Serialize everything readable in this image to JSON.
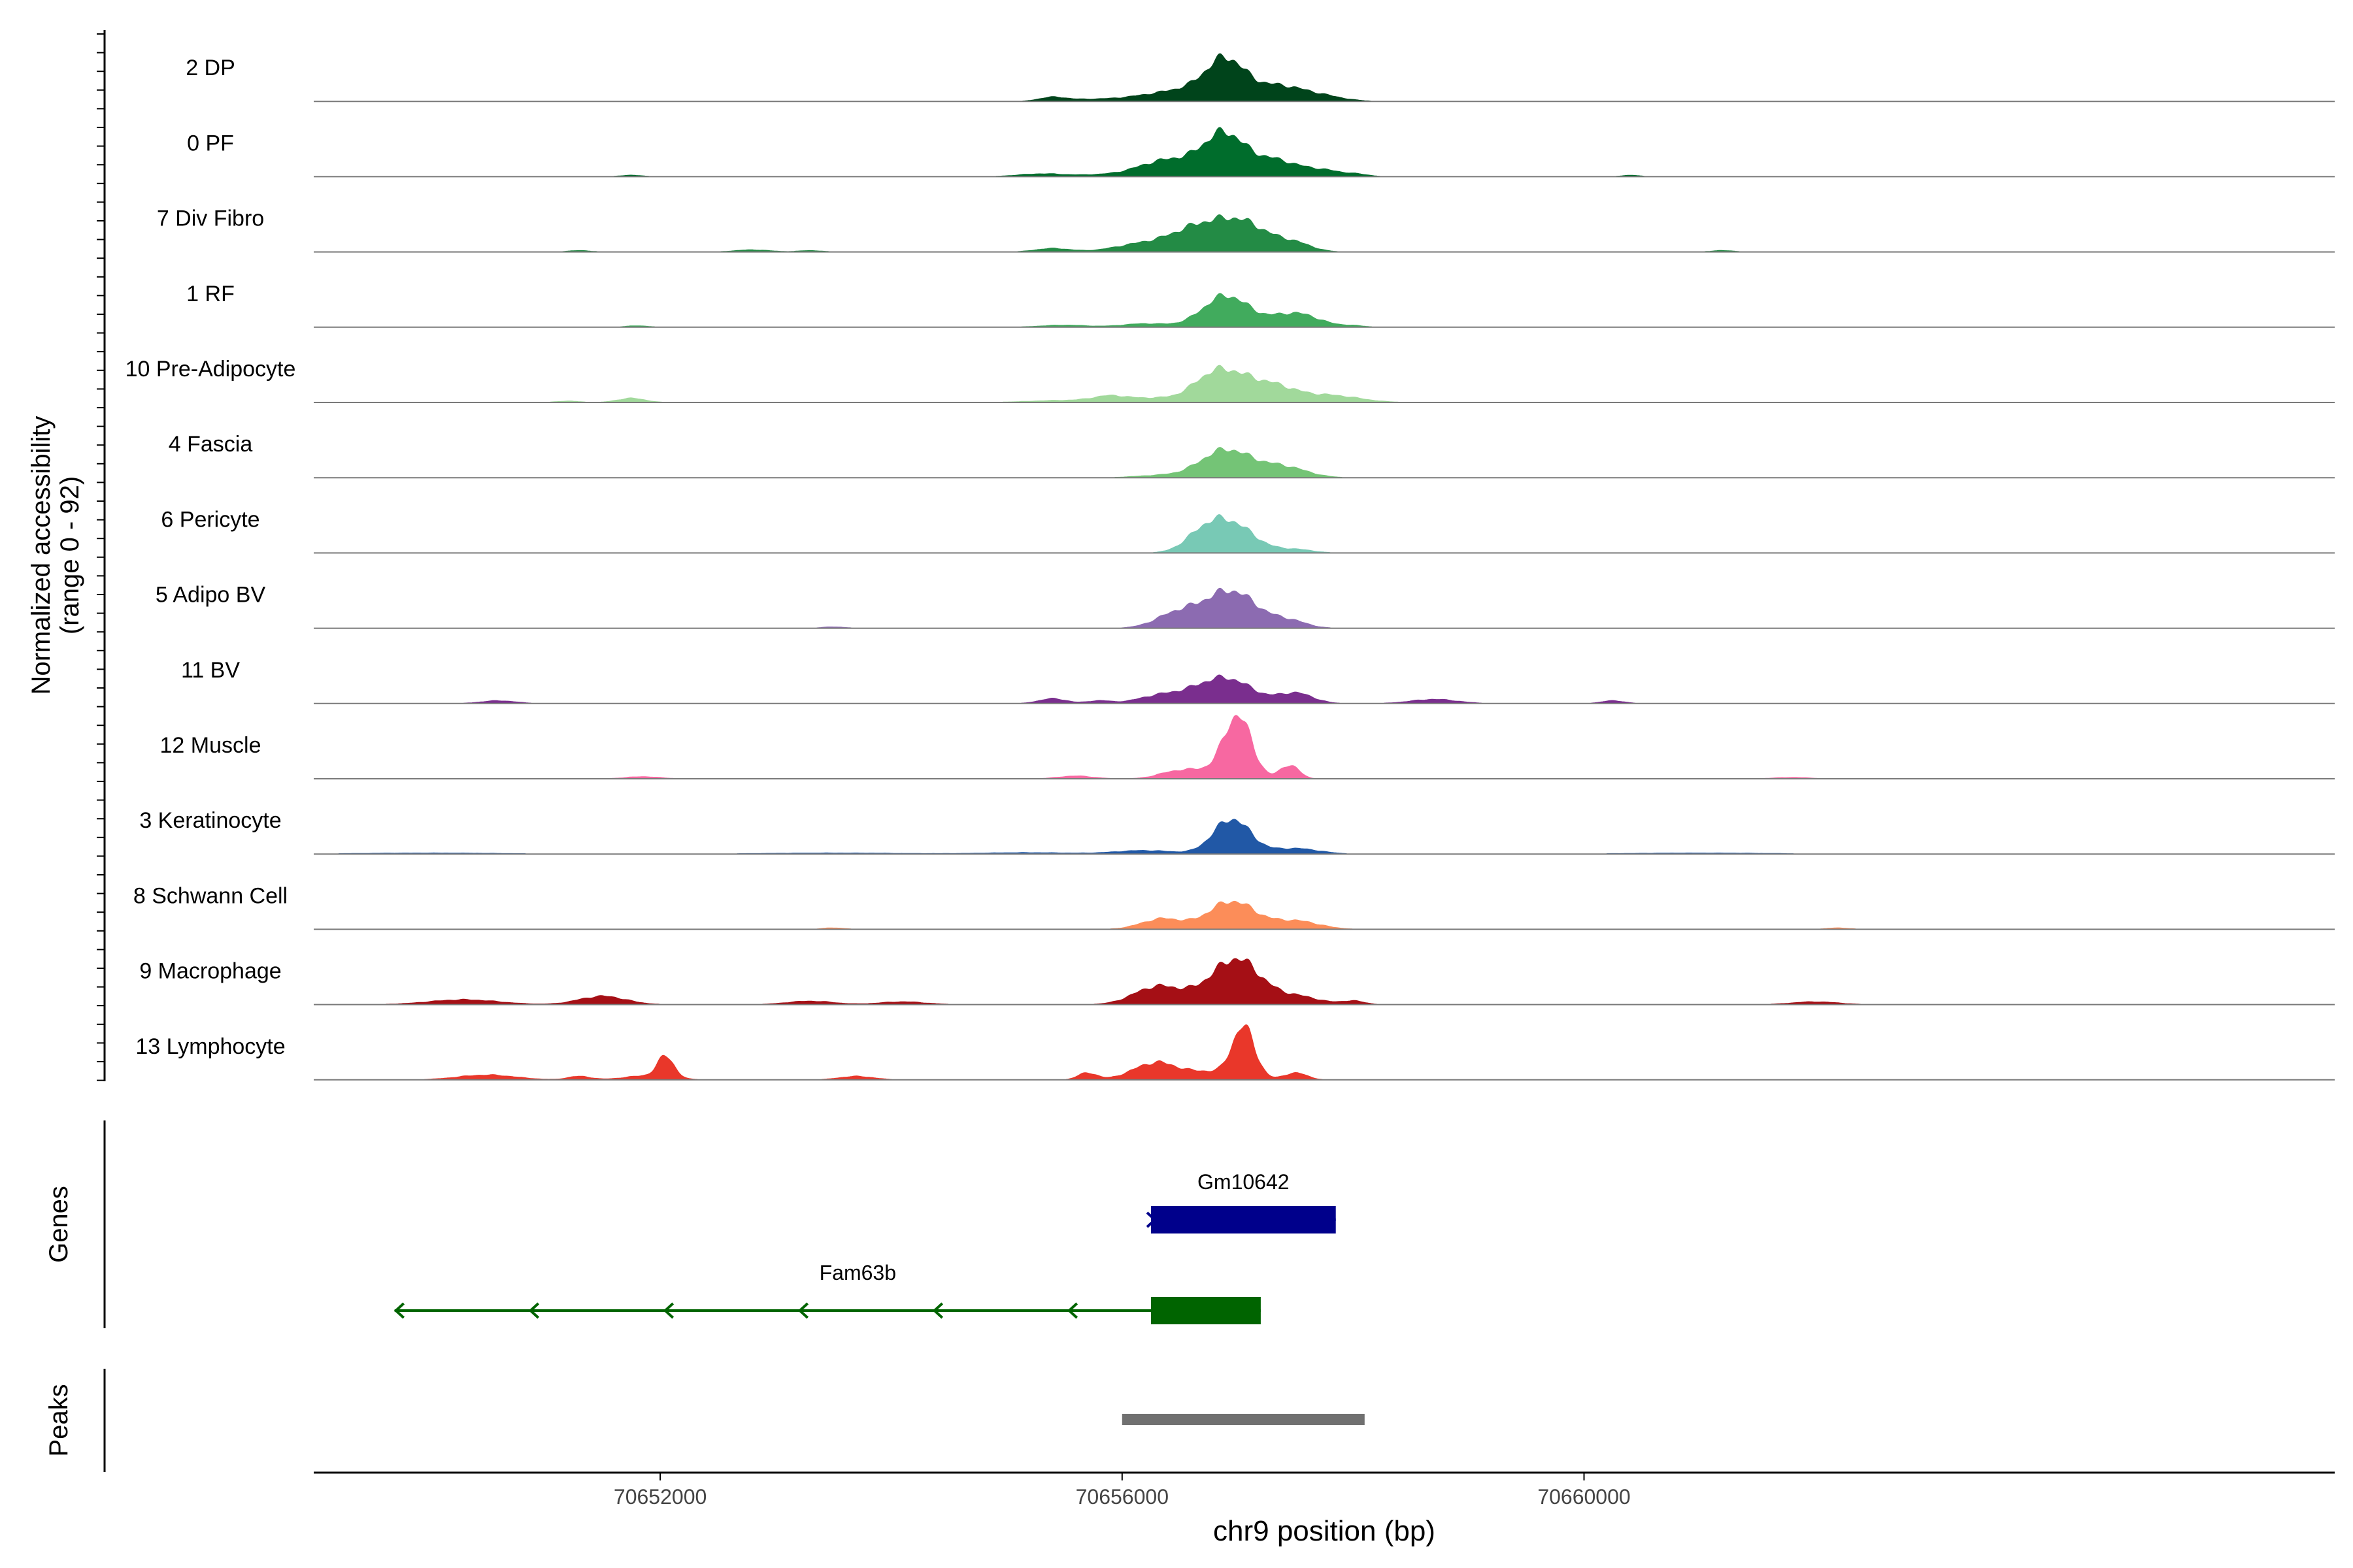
{
  "chart_data": {
    "type": "area",
    "title": "",
    "region": "chr9",
    "xlabel": "chr9 position (bp)",
    "xlim": [
      70649000,
      70666500
    ],
    "x_ticks": [
      70652000,
      70656000,
      70660000
    ],
    "x_tick_labels": [
      "70652000",
      "70656000",
      "70660000"
    ],
    "coverage": {
      "ylabel_line1": "Normalized accessibility",
      "ylabel_line2": "(range 0 - 92)",
      "ylim": [
        0,
        92
      ],
      "tracks": [
        {
          "name": "2 DP",
          "color": "#00441b",
          "peaks": [
            [
              70655400,
              6,
              120
            ],
            [
              70655700,
              2,
              150
            ],
            [
              70656100,
              3,
              250
            ],
            [
              70656700,
              20,
              350
            ],
            [
              70656900,
              45,
              160
            ],
            [
              70657350,
              18,
              200
            ],
            [
              70657700,
              8,
              200
            ]
          ]
        },
        {
          "name": "0 PF",
          "color": "#006d2c",
          "peaks": [
            [
              70651750,
              2,
              100
            ],
            [
              70655300,
              4,
              200
            ],
            [
              70655900,
              3,
              250
            ],
            [
              70656300,
              14,
              200
            ],
            [
              70656650,
              20,
              250
            ],
            [
              70656900,
              50,
              170
            ],
            [
              70657300,
              22,
              180
            ],
            [
              70657700,
              10,
              200
            ],
            [
              70658050,
              2,
              100
            ],
            [
              70660400,
              2,
              80
            ]
          ]
        },
        {
          "name": "7 Div Fibro",
          "color": "#238b45",
          "peaks": [
            [
              70651300,
              2,
              100
            ],
            [
              70652800,
              3,
              150
            ],
            [
              70653300,
              2,
              100
            ],
            [
              70655400,
              5,
              150
            ],
            [
              70656200,
              12,
              250
            ],
            [
              70656600,
              22,
              200
            ],
            [
              70657000,
              45,
              250
            ],
            [
              70657500,
              10,
              150
            ],
            [
              70661200,
              2,
              100
            ]
          ]
        },
        {
          "name": "1 RF",
          "color": "#41ab5d",
          "peaks": [
            [
              70651800,
              2,
              100
            ],
            [
              70655500,
              3,
              200
            ],
            [
              70656200,
              5,
              200
            ],
            [
              70656900,
              45,
              200
            ],
            [
              70657500,
              20,
              200
            ],
            [
              70658000,
              2,
              100
            ]
          ]
        },
        {
          "name": "10 Pre-Adipocyte",
          "color": "#a1d99b",
          "peaks": [
            [
              70651200,
              2,
              100
            ],
            [
              70651750,
              6,
              120
            ],
            [
              70655500,
              3,
              300
            ],
            [
              70655900,
              8,
              150
            ],
            [
              70656300,
              6,
              200
            ],
            [
              70656700,
              12,
              150
            ],
            [
              70656900,
              40,
              200
            ],
            [
              70657300,
              22,
              200
            ],
            [
              70657800,
              10,
              250
            ]
          ]
        },
        {
          "name": "4 Fascia",
          "color": "#74c476",
          "peaks": [
            [
              70656300,
              3,
              200
            ],
            [
              70656900,
              40,
              220
            ],
            [
              70657400,
              15,
              200
            ]
          ]
        },
        {
          "name": "6 Pericyte",
          "color": "#78c9b5",
          "peaks": [
            [
              70656700,
              22,
              160
            ],
            [
              70656950,
              40,
              200
            ],
            [
              70657500,
              5,
              150
            ]
          ]
        },
        {
          "name": "5 Adipo BV",
          "color": "#8c6bb1",
          "peaks": [
            [
              70653500,
              2,
              100
            ],
            [
              70656450,
              15,
              180
            ],
            [
              70656600,
              8,
              200
            ],
            [
              70656950,
              52,
              220
            ],
            [
              70657450,
              10,
              150
            ]
          ]
        },
        {
          "name": "11 BV",
          "color": "#7a2e8e",
          "peaks": [
            [
              70650600,
              4,
              150
            ],
            [
              70655400,
              7,
              120
            ],
            [
              70655800,
              4,
              100
            ],
            [
              70656350,
              12,
              200
            ],
            [
              70656700,
              14,
              180
            ],
            [
              70656950,
              30,
              200
            ],
            [
              70657500,
              15,
              150
            ],
            [
              70658700,
              6,
              200
            ],
            [
              70660250,
              4,
              100
            ]
          ]
        },
        {
          "name": "12 Muscle",
          "color": "#f768a1",
          "peaks": [
            [
              70651850,
              3,
              150
            ],
            [
              70655600,
              4,
              150
            ],
            [
              70656450,
              9,
              150
            ],
            [
              70656700,
              10,
              150
            ],
            [
              70657000,
              90,
              120
            ],
            [
              70657450,
              20,
              80
            ],
            [
              70661800,
              2,
              150
            ]
          ]
        },
        {
          "name": "3 Keratinocyte",
          "color": "#2158a6",
          "peaks": [
            [
              70650000,
              1.5,
              600
            ],
            [
              70653500,
              1.5,
              600
            ],
            [
              70655200,
              2,
              400
            ],
            [
              70656200,
              5,
              250
            ],
            [
              70656950,
              50,
              160
            ],
            [
              70657500,
              8,
              200
            ],
            [
              70661000,
              1.5,
              600
            ]
          ]
        },
        {
          "name": "8 Schwann Cell",
          "color": "#fc8d59",
          "peaks": [
            [
              70653500,
              2,
              100
            ],
            [
              70656350,
              15,
              180
            ],
            [
              70656950,
              40,
              200
            ],
            [
              70657500,
              12,
              200
            ],
            [
              70662200,
              2,
              100
            ]
          ]
        },
        {
          "name": "9 Macrophage",
          "color": "#a50f15",
          "peaks": [
            [
              70650300,
              7,
              300
            ],
            [
              70651500,
              12,
              200
            ],
            [
              70653300,
              5,
              200
            ],
            [
              70654100,
              4,
              200
            ],
            [
              70656300,
              25,
              200
            ],
            [
              70656700,
              10,
              200
            ],
            [
              70657000,
              62,
              200
            ],
            [
              70657500,
              12,
              200
            ],
            [
              70658000,
              5,
              100
            ],
            [
              70662000,
              4,
              200
            ]
          ]
        },
        {
          "name": "13 Lymphocyte",
          "color": "#e9372a",
          "peaks": [
            [
              70650500,
              7,
              250
            ],
            [
              70651300,
              5,
              100
            ],
            [
              70651900,
              6,
              200
            ],
            [
              70652050,
              30,
              70
            ],
            [
              70653700,
              5,
              150
            ],
            [
              70655700,
              10,
              80
            ],
            [
              70656300,
              25,
              200
            ],
            [
              70656750,
              10,
              150
            ],
            [
              70657050,
              75,
              100
            ],
            [
              70657500,
              10,
              100
            ]
          ]
        }
      ]
    },
    "genes": {
      "label": "Genes",
      "items": [
        {
          "name": "Gm10642",
          "start": 70656250,
          "end": 70657850,
          "color": "#00008b",
          "strand": "+",
          "exon_start": 70656250,
          "exon_end": 70657850
        },
        {
          "name": "Fam63b",
          "start": 70649700,
          "end": 70657200,
          "color": "#006400",
          "strand": "-",
          "exon_start": 70656250,
          "exon_end": 70657200
        }
      ]
    },
    "peaks_track": {
      "label": "Peaks",
      "color": "#707070",
      "regions": [
        [
          70656000,
          70658100
        ]
      ]
    }
  }
}
